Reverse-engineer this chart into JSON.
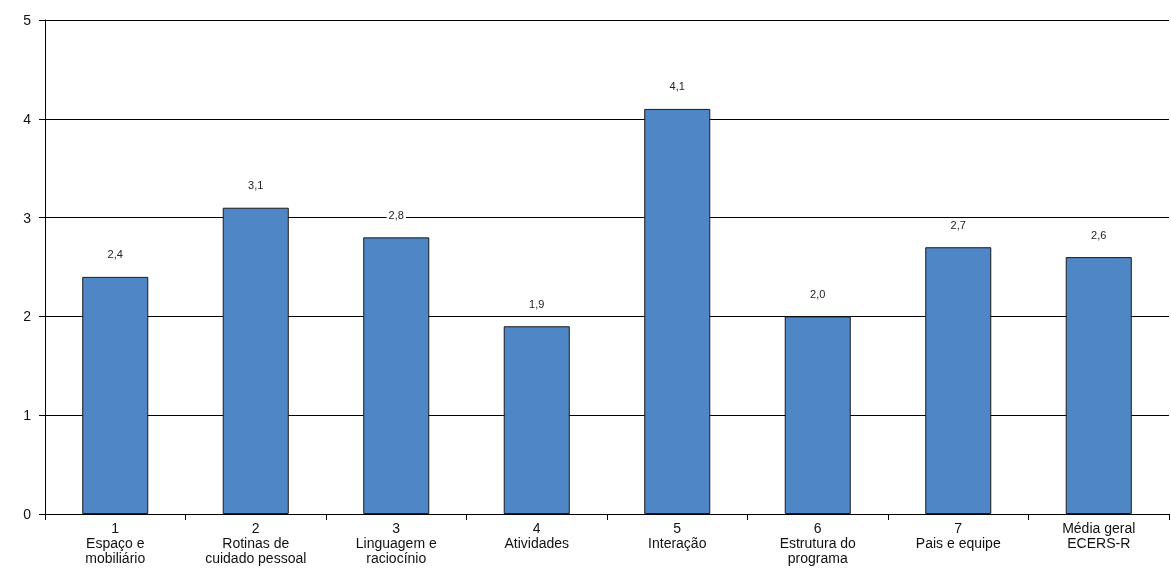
{
  "chart_data": {
    "type": "bar",
    "categories": [
      "1\nEspaço e\nmobiliário",
      "2\nRotinas de\ncuidado pessoal",
      "3\nLinguagem e\nraciocínio",
      "4\nAtividades",
      "5\nInteração",
      "6\nEstrutura do\nprograma",
      "7\nPais e equipe",
      "Média geral\nECERS-R"
    ],
    "values": [
      2.4,
      3.1,
      2.8,
      1.9,
      4.1,
      2.0,
      2.7,
      2.6
    ],
    "value_labels": [
      "2,4",
      "3,1",
      "2,8",
      "1,9",
      "4,1",
      "2,0",
      "2,7",
      "2,6"
    ],
    "color": "#4f86c6",
    "ylim": [
      0,
      5
    ],
    "yticks": [
      0,
      1,
      2,
      3,
      4,
      5
    ],
    "grid": "y"
  }
}
